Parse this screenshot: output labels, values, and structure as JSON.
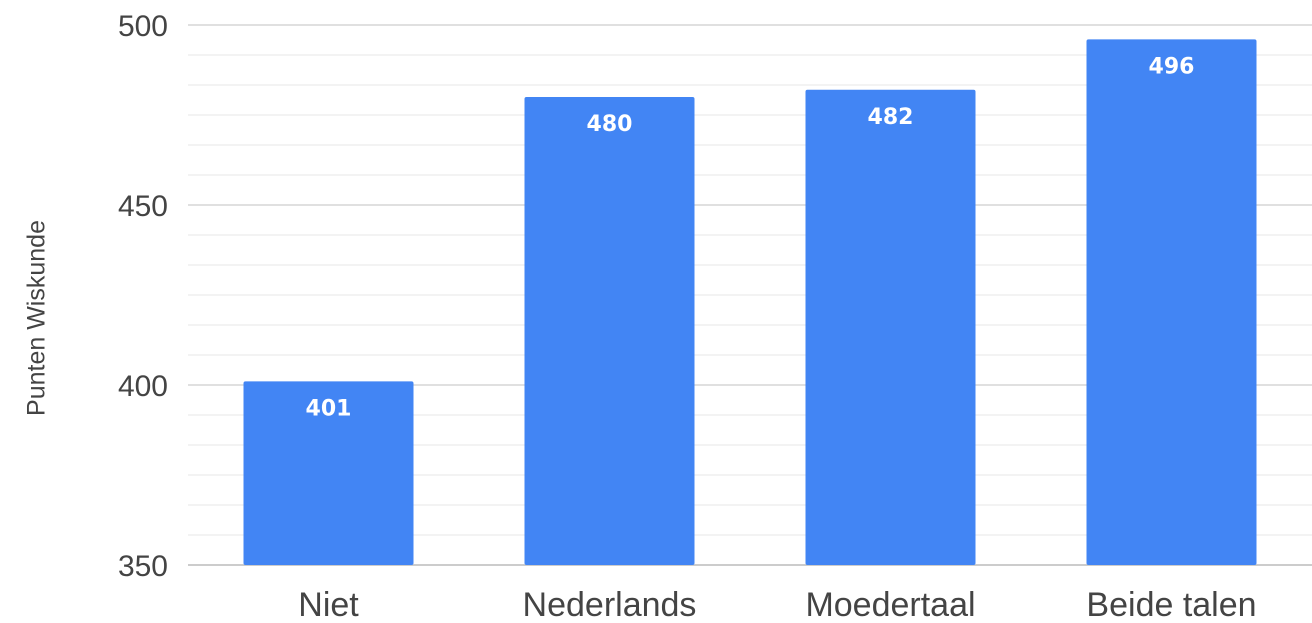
{
  "chart_data": {
    "type": "bar",
    "title": "",
    "xlabel": "",
    "ylabel": "Punten Wiskunde",
    "categories": [
      "Niet",
      "Nederlands",
      "Moedertaal",
      "Beide talen"
    ],
    "values": [
      401,
      480,
      482,
      496
    ],
    "data_labels": [
      "401",
      "480",
      "482",
      "496"
    ],
    "ylim": [
      350,
      500
    ],
    "y_ticks": [
      350,
      400,
      450,
      500
    ],
    "y_tick_labels": [
      "350",
      "400",
      "450",
      "500"
    ],
    "minor_grid_step": 8.333,
    "grid": true,
    "legend": "none",
    "bar_color": "#4285f4",
    "grid_color": "#e0e0e0"
  }
}
